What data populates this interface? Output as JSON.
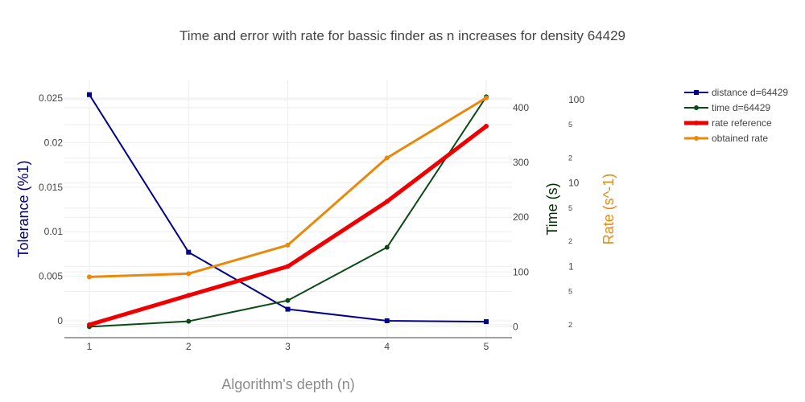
{
  "chart_data": {
    "type": "line",
    "title": "Time and error with rate for bassic finder as n increases for density 64429",
    "xlabel": "Algorithm's depth (n)",
    "x": [
      1,
      2,
      3,
      4,
      5
    ],
    "x_ticks": [
      "1",
      "2",
      "3",
      "4",
      "5"
    ],
    "axes": {
      "y1": {
        "label": "Tolerance (%1)",
        "range": [
          -0.0019,
          0.027
        ],
        "ticks": [
          "0",
          "0.005",
          "0.01",
          "0.015",
          "0.02",
          "0.025"
        ],
        "tick_values": [
          0,
          0.005,
          0.01,
          0.015,
          0.02,
          0.025
        ],
        "color": "#00008b"
      },
      "y2": {
        "label": "Time (s)",
        "range": [
          -20,
          450
        ],
        "ticks": [
          "0",
          "100",
          "200",
          "300",
          "400"
        ],
        "tick_values": [
          0,
          100,
          200,
          300,
          400
        ],
        "color": "#003300"
      },
      "y3": {
        "label": "Rate (s^-1)",
        "scale": "log",
        "range": [
          0.14,
          170
        ],
        "ticks": [
          "2",
          "5",
          "1",
          "2",
          "5",
          "10",
          "2",
          "5",
          "100"
        ],
        "tick_values": [
          0.2,
          0.5,
          1,
          2,
          5,
          10,
          20,
          50,
          100
        ],
        "color": "#e8890c"
      }
    },
    "series": [
      {
        "name": "distance d=64429",
        "axis": "y1",
        "color": "#00008b",
        "marker": "square",
        "width": 2,
        "values": [
          0.0254,
          0.0077,
          0.0013,
          0.0,
          -0.0001
        ]
      },
      {
        "name": "time d=64429",
        "axis": "y2",
        "color": "#0b4a16",
        "marker": "circle",
        "width": 2,
        "values": [
          0,
          10,
          48,
          145,
          420
        ]
      },
      {
        "name": "rate reference",
        "axis": "y3",
        "color": "#ee0000",
        "marker": "circle",
        "width": 5,
        "values": [
          0.2,
          0.45,
          1.0,
          6.0,
          48
        ]
      },
      {
        "name": "obtained rate",
        "axis": "y3",
        "color": "#e8890c",
        "marker": "circle",
        "width": 3,
        "values": [
          0.75,
          0.82,
          1.8,
          20,
          105
        ]
      }
    ],
    "legend": "top-right",
    "grid": true
  }
}
